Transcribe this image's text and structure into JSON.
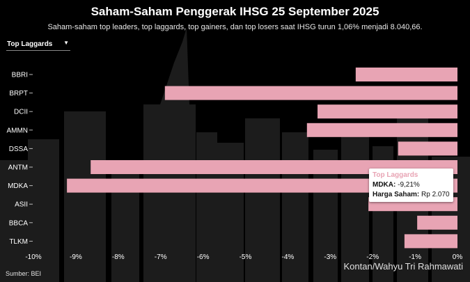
{
  "header": {
    "title": "Saham-Saham Penggerak IHSG 25 September 2025",
    "subtitle": "Saham-saham top leaders, top laggards, top gainers, dan top losers saat IHSG turun 1,06% menjadi 8.040,66."
  },
  "filter": {
    "selected": "Top Laggards"
  },
  "colors": {
    "bar": "#e8a4b4",
    "background": "#000000",
    "tooltip_title": "#e8a4b4"
  },
  "chart_data": {
    "type": "bar",
    "orientation": "horizontal",
    "title": "Saham-Saham Penggerak IHSG 25 September 2025",
    "series_name": "Top Laggards",
    "categories": [
      "BBRI",
      "BRPT",
      "DCII",
      "AMMN",
      "DSSA",
      "ANTM",
      "MDKA",
      "ASII",
      "BBCA",
      "TLKM"
    ],
    "values": [
      -2.4,
      -6.9,
      -3.3,
      -3.55,
      -1.4,
      -8.65,
      -9.21,
      -2.1,
      -0.95,
      -1.25
    ],
    "xlim": [
      -10,
      0
    ],
    "xticks": [
      -10,
      -9,
      -8,
      -7,
      -6,
      -5,
      -4,
      -3,
      -2,
      -1,
      0
    ],
    "xtick_labels": [
      "-10%",
      "-9%",
      "-8%",
      "-7%",
      "-6%",
      "-5%",
      "-4%",
      "-3%",
      "-2%",
      "-1%",
      "0%"
    ],
    "xlabel": "",
    "ylabel": "",
    "grid": false
  },
  "tooltip": {
    "title": "Top Laggards",
    "ticker_label": "MDKA:",
    "ticker_value": "-9,21%",
    "price_label": "Harga Saham:",
    "price_value": "Rp 2.070"
  },
  "footer": {
    "credit": "Kontan/Wahyu Tri Rahmawati",
    "source": "Sumber: BEI"
  }
}
